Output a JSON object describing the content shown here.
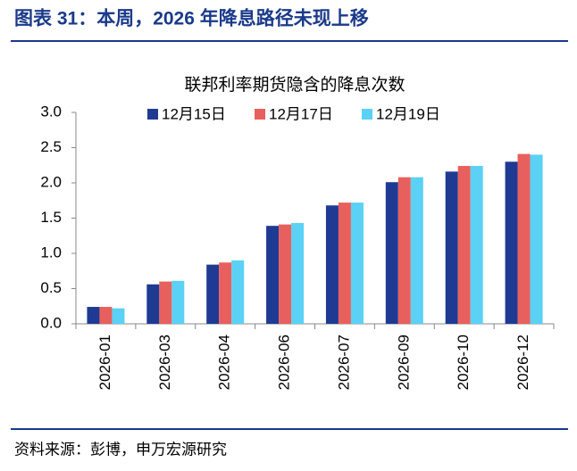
{
  "header": {
    "title": "图表 31：本周，2026 年降息路径未现上移"
  },
  "chart_data": {
    "type": "bar",
    "title": "联邦利率期货隐含的降息次数",
    "categories": [
      "2026-01",
      "2026-03",
      "2026-04",
      "2026-06",
      "2026-07",
      "2026-09",
      "2026-10",
      "2026-12"
    ],
    "series": [
      {
        "name": "12月15日",
        "color": "#1f3a93",
        "values": [
          0.24,
          0.56,
          0.84,
          1.39,
          1.68,
          2.01,
          2.16,
          2.3
        ]
      },
      {
        "name": "12月17日",
        "color": "#e8605d",
        "values": [
          0.24,
          0.6,
          0.87,
          1.41,
          1.72,
          2.08,
          2.24,
          2.41
        ]
      },
      {
        "name": "12月19日",
        "color": "#5ad1f5",
        "values": [
          0.22,
          0.61,
          0.9,
          1.43,
          1.72,
          2.08,
          2.24,
          2.4
        ]
      }
    ],
    "ylim": [
      0,
      3
    ],
    "yticks": [
      {
        "value": 0,
        "label": "0.0"
      },
      {
        "value": 0.5,
        "label": "0.5"
      },
      {
        "value": 1,
        "label": "1.0"
      },
      {
        "value": 1.5,
        "label": "1.5"
      },
      {
        "value": 2,
        "label": "2.0"
      },
      {
        "value": 2.5,
        "label": "2.5"
      },
      {
        "value": 3,
        "label": "3.0"
      }
    ],
    "grid": false,
    "legend": "top"
  },
  "footer": {
    "source": "资料来源：彭博，申万宏源研究"
  }
}
